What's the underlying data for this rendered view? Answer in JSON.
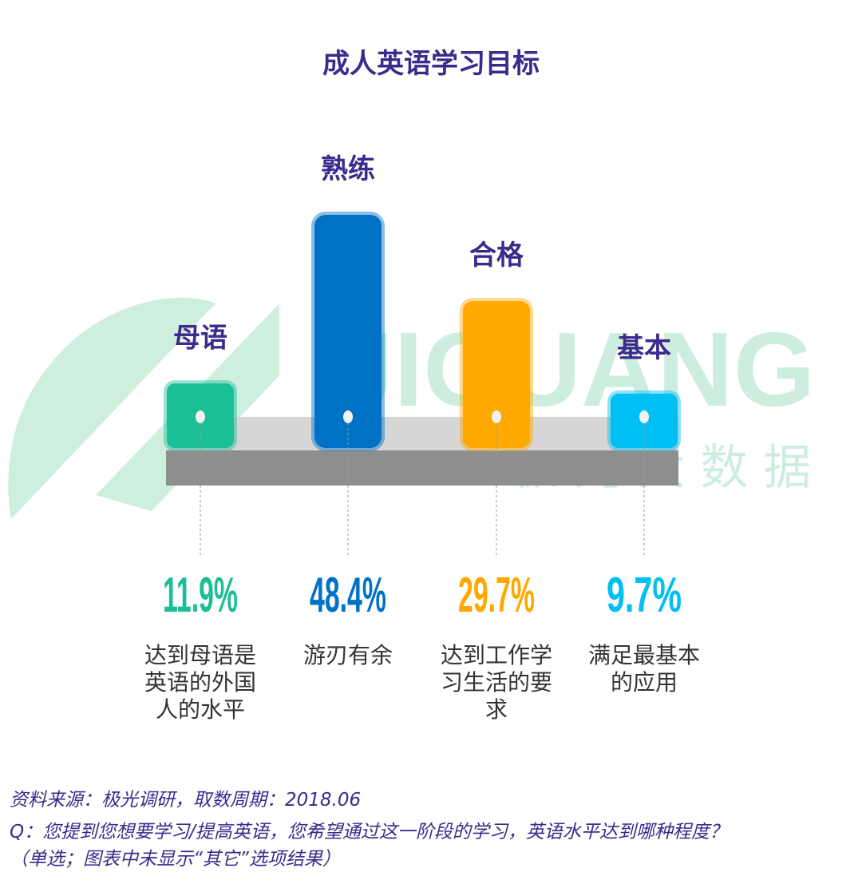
{
  "title": "成人英语学习目标",
  "watermark": {
    "latin": "JIGUANG",
    "cjk": "极 光 大 数 据"
  },
  "chart_data": {
    "type": "bar",
    "title": "成人英语学习目标",
    "categories": [
      "母语",
      "熟练",
      "合格",
      "基本"
    ],
    "values": [
      11.9,
      48.4,
      29.7,
      9.7
    ],
    "value_labels": [
      "11.9%",
      "48.4%",
      "29.7%",
      "9.7%"
    ],
    "descriptions": [
      [
        "达到母语是",
        "英语的外国",
        "人的水平"
      ],
      [
        "游刃有余"
      ],
      [
        "达到工作学",
        "习生活的要",
        "求"
      ],
      [
        "满足最基本",
        "的应用"
      ]
    ],
    "colors": [
      "#1bbf95",
      "#0072c6",
      "#ffa800",
      "#00bff2"
    ],
    "label_color": "#3c2a8c",
    "ylim": [
      0,
      48.4
    ]
  },
  "footnotes": {
    "source": "资料来源：极光调研，取数周期：2018.06",
    "question": "Q：您提到您想要学习/提高英语，您希望通过这一阶段的学习，英语水平达到哪种程度？",
    "note": "（单选；图表中未显示“其它”选项结果）"
  }
}
